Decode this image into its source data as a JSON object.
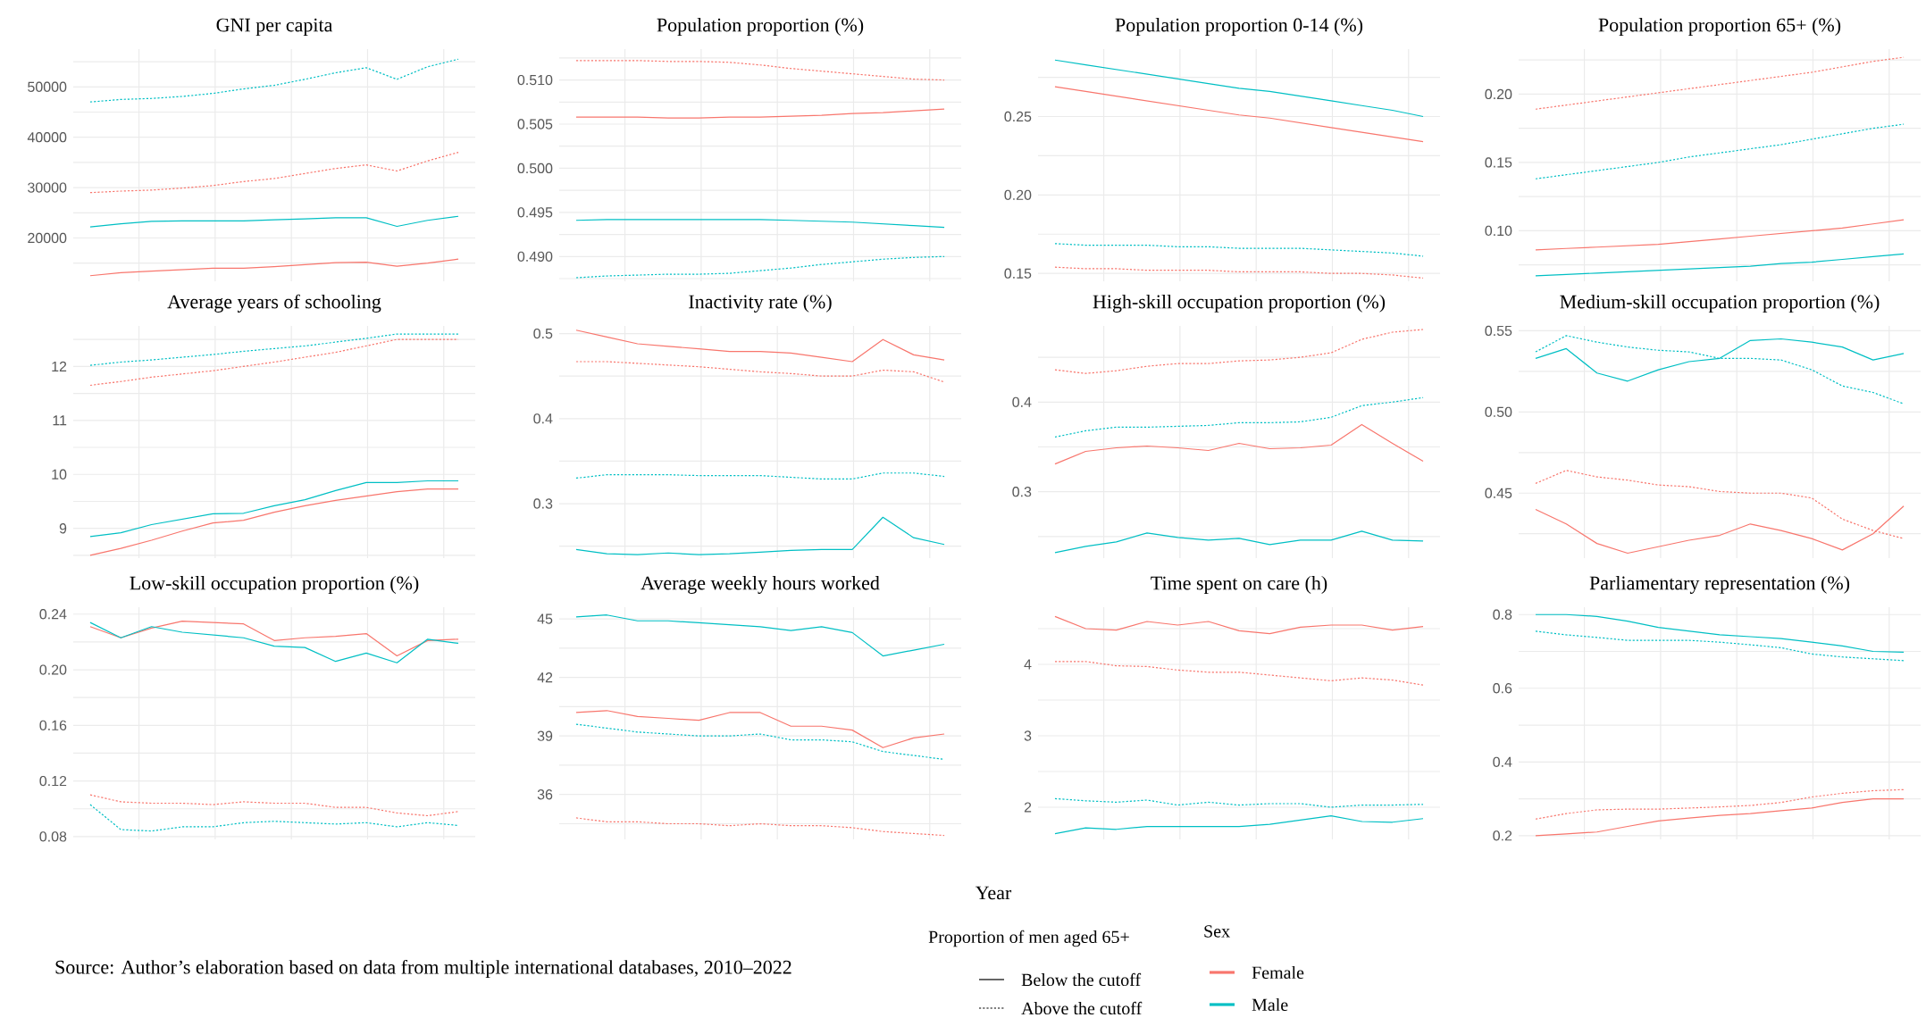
{
  "chart_data": [
    {
      "type": "line",
      "title": "GNI per capita",
      "categories": [
        null,
        null,
        null,
        null,
        null,
        null,
        null,
        null,
        null,
        null,
        null,
        null,
        null
      ],
      "ylim": [
        11400,
        57500
      ],
      "yticks": [
        {
          "value": 15000,
          "label": null
        },
        20000,
        {
          "value": 25000,
          "label": null
        },
        30000,
        {
          "value": 35000,
          "label": null
        },
        40000,
        {
          "value": 45000,
          "label": null
        },
        50000,
        {
          "value": 55000,
          "label": null
        }
      ],
      "grid": true,
      "tick_labels": "y",
      "series": [
        {
          "color": "#f8766d",
          "line_style": "solid",
          "values": [
            12500,
            13100,
            13400,
            13700,
            14000,
            14000,
            14300,
            14700,
            15100,
            15200,
            14400,
            15000,
            15800
          ]
        },
        {
          "color": "#f8766d",
          "line_style": "dotted",
          "values": [
            29000,
            29300,
            29500,
            29900,
            30400,
            31200,
            31800,
            32800,
            33800,
            34500,
            33300,
            35300,
            37000
          ]
        },
        {
          "color": "#00bfc4",
          "line_style": "solid",
          "values": [
            22200,
            22800,
            23300,
            23400,
            23400,
            23400,
            23600,
            23800,
            24000,
            24000,
            22300,
            23500,
            24300
          ]
        },
        {
          "color": "#00bfc4",
          "line_style": "dotted",
          "values": [
            47000,
            47500,
            47700,
            48100,
            48700,
            49600,
            50300,
            51500,
            52800,
            53800,
            51500,
            54000,
            55500
          ]
        }
      ]
    },
    {
      "type": "line",
      "title": "Population proportion (%)",
      "categories": [
        null,
        null,
        null,
        null,
        null,
        null,
        null,
        null,
        null,
        null,
        null,
        null,
        null
      ],
      "ylim": [
        0.4872,
        0.5135
      ],
      "yticks": [
        {
          "value": 0.4875,
          "label": null
        },
        {
          "value": 0.49,
          "label": "0.490"
        },
        {
          "value": 0.4925,
          "label": null
        },
        0.495,
        {
          "value": 0.4975,
          "label": null
        },
        {
          "value": 0.5,
          "label": "0.500"
        },
        {
          "value": 0.5025,
          "label": null
        },
        0.505,
        {
          "value": 0.5075,
          "label": null
        },
        {
          "value": 0.51,
          "label": "0.510"
        },
        {
          "value": 0.5125,
          "label": null
        }
      ],
      "grid": true,
      "tick_labels": "y",
      "series": [
        {
          "color": "#f8766d",
          "line_style": "solid",
          "values": [
            0.5058,
            0.5058,
            0.5058,
            0.5057,
            0.5057,
            0.5058,
            0.5058,
            0.5059,
            0.506,
            0.5062,
            0.5063,
            0.5065,
            0.5067
          ]
        },
        {
          "color": "#f8766d",
          "line_style": "dotted",
          "values": [
            0.5122,
            0.5122,
            0.5122,
            0.5121,
            0.5121,
            0.512,
            0.5117,
            0.5113,
            0.511,
            0.5107,
            0.5104,
            0.5101,
            0.51
          ]
        },
        {
          "color": "#00bfc4",
          "line_style": "solid",
          "values": [
            0.4941,
            0.4942,
            0.4942,
            0.4942,
            0.4942,
            0.4942,
            0.4942,
            0.4941,
            0.494,
            0.4939,
            0.4937,
            0.4935,
            0.4933
          ]
        },
        {
          "color": "#00bfc4",
          "line_style": "dotted",
          "values": [
            0.4876,
            0.4878,
            0.4879,
            0.488,
            0.488,
            0.4881,
            0.4884,
            0.4887,
            0.4891,
            0.4894,
            0.4897,
            0.4899,
            0.49
          ]
        }
      ]
    },
    {
      "type": "line",
      "title": "Population proportion 0-14 (%)",
      "categories": [
        null,
        null,
        null,
        null,
        null,
        null,
        null,
        null,
        null,
        null,
        null,
        null,
        null
      ],
      "ylim": [
        0.145,
        0.293
      ],
      "yticks": [
        0.15,
        {
          "value": 0.175,
          "label": null
        },
        {
          "value": 0.2,
          "label": "0.20"
        },
        {
          "value": 0.225,
          "label": null
        },
        0.25,
        {
          "value": 0.275,
          "label": null
        }
      ],
      "grid": true,
      "tick_labels": "y",
      "series": [
        {
          "color": "#f8766d",
          "line_style": "solid",
          "values": [
            0.269,
            0.266,
            0.263,
            0.26,
            0.257,
            0.254,
            0.251,
            0.249,
            0.246,
            0.243,
            0.24,
            0.237,
            0.234
          ]
        },
        {
          "color": "#f8766d",
          "line_style": "dotted",
          "values": [
            0.154,
            0.153,
            0.153,
            0.152,
            0.152,
            0.152,
            0.151,
            0.151,
            0.151,
            0.15,
            0.15,
            0.149,
            0.147
          ]
        },
        {
          "color": "#00bfc4",
          "line_style": "solid",
          "values": [
            0.286,
            0.283,
            0.28,
            0.277,
            0.274,
            0.271,
            0.268,
            0.266,
            0.263,
            0.26,
            0.257,
            0.254,
            0.25
          ]
        },
        {
          "color": "#00bfc4",
          "line_style": "dotted",
          "values": [
            0.169,
            0.168,
            0.168,
            0.168,
            0.167,
            0.167,
            0.166,
            0.166,
            0.166,
            0.165,
            0.164,
            0.163,
            0.161
          ]
        }
      ]
    },
    {
      "type": "line",
      "title": "Population proportion 65+ (%)",
      "categories": [
        null,
        null,
        null,
        null,
        null,
        null,
        null,
        null,
        null,
        null,
        null,
        null,
        null
      ],
      "ylim": [
        0.063,
        0.233
      ],
      "yticks": [
        {
          "value": 0.075,
          "label": null
        },
        {
          "value": 0.1,
          "label": "0.10"
        },
        {
          "value": 0.125,
          "label": null
        },
        0.15,
        {
          "value": 0.175,
          "label": null
        },
        {
          "value": 0.2,
          "label": "0.20"
        },
        {
          "value": 0.225,
          "label": null
        }
      ],
      "grid": true,
      "tick_labels": "y",
      "series": [
        {
          "color": "#f8766d",
          "line_style": "solid",
          "values": [
            0.086,
            0.087,
            0.088,
            0.089,
            0.09,
            0.092,
            0.094,
            0.096,
            0.098,
            0.1,
            0.102,
            0.105,
            0.108
          ]
        },
        {
          "color": "#f8766d",
          "line_style": "dotted",
          "values": [
            0.189,
            0.192,
            0.195,
            0.198,
            0.201,
            0.204,
            0.207,
            0.21,
            0.213,
            0.216,
            0.22,
            0.224,
            0.227
          ]
        },
        {
          "color": "#00bfc4",
          "line_style": "solid",
          "values": [
            0.067,
            0.068,
            0.069,
            0.07,
            0.071,
            0.072,
            0.073,
            0.074,
            0.076,
            0.077,
            0.079,
            0.081,
            0.083
          ]
        },
        {
          "color": "#00bfc4",
          "line_style": "dotted",
          "values": [
            0.138,
            0.141,
            0.144,
            0.147,
            0.15,
            0.154,
            0.157,
            0.16,
            0.163,
            0.167,
            0.171,
            0.175,
            0.178
          ]
        }
      ]
    },
    {
      "type": "line",
      "title": "Average years of schooling",
      "categories": [
        null,
        null,
        null,
        null,
        null,
        null,
        null,
        null,
        null,
        null,
        null,
        null,
        null
      ],
      "ylim": [
        8.45,
        12.75
      ],
      "yticks": [
        {
          "value": 8.5,
          "label": null
        },
        9,
        {
          "value": 9.5,
          "label": null
        },
        10,
        {
          "value": 10.5,
          "label": null
        },
        11,
        {
          "value": 11.5,
          "label": null
        },
        12,
        {
          "value": 12.5,
          "label": null
        }
      ],
      "grid": true,
      "tick_labels": "y",
      "series": [
        {
          "color": "#f8766d",
          "line_style": "solid",
          "values": [
            8.5,
            8.63,
            8.78,
            8.95,
            9.1,
            9.15,
            9.3,
            9.42,
            9.52,
            9.6,
            9.68,
            9.73,
            9.73
          ]
        },
        {
          "color": "#f8766d",
          "line_style": "dotted",
          "values": [
            11.65,
            11.72,
            11.8,
            11.86,
            11.92,
            12.0,
            12.08,
            12.17,
            12.26,
            12.38,
            12.5,
            12.5,
            12.5
          ]
        },
        {
          "color": "#00bfc4",
          "line_style": "solid",
          "values": [
            8.85,
            8.92,
            9.07,
            9.17,
            9.27,
            9.28,
            9.42,
            9.53,
            9.7,
            9.85,
            9.85,
            9.88,
            9.88
          ]
        },
        {
          "color": "#00bfc4",
          "line_style": "dotted",
          "values": [
            12.02,
            12.08,
            12.12,
            12.17,
            12.22,
            12.28,
            12.33,
            12.38,
            12.45,
            12.52,
            12.6,
            12.6,
            12.6
          ]
        }
      ]
    },
    {
      "type": "line",
      "title": "Inactivity rate (%)",
      "categories": [
        null,
        null,
        null,
        null,
        null,
        null,
        null,
        null,
        null,
        null,
        null,
        null,
        null
      ],
      "ylim": [
        0.236,
        0.509
      ],
      "yticks": [
        {
          "value": 0.25,
          "label": null
        },
        0.3,
        {
          "value": 0.35,
          "label": null
        },
        0.4,
        {
          "value": 0.45,
          "label": null
        },
        0.5
      ],
      "grid": true,
      "tick_labels": "y",
      "series": [
        {
          "color": "#f8766d",
          "line_style": "solid",
          "values": [
            0.504,
            0.496,
            0.488,
            0.485,
            0.482,
            0.479,
            0.479,
            0.477,
            0.472,
            0.467,
            0.493,
            0.475,
            0.469
          ]
        },
        {
          "color": "#f8766d",
          "line_style": "dotted",
          "values": [
            0.467,
            0.467,
            0.465,
            0.463,
            0.461,
            0.458,
            0.455,
            0.453,
            0.45,
            0.45,
            0.457,
            0.455,
            0.443
          ]
        },
        {
          "color": "#00bfc4",
          "line_style": "solid",
          "values": [
            0.246,
            0.241,
            0.24,
            0.242,
            0.24,
            0.241,
            0.243,
            0.245,
            0.246,
            0.246,
            0.284,
            0.26,
            0.252
          ]
        },
        {
          "color": "#00bfc4",
          "line_style": "dotted",
          "values": [
            0.33,
            0.334,
            0.334,
            0.334,
            0.333,
            0.333,
            0.333,
            0.331,
            0.329,
            0.329,
            0.336,
            0.336,
            0.332
          ]
        }
      ]
    },
    {
      "type": "line",
      "title": "High-skill occupation proportion (%)",
      "categories": [
        null,
        null,
        null,
        null,
        null,
        null,
        null,
        null,
        null,
        null,
        null,
        null,
        null
      ],
      "ylim": [
        0.226,
        0.485
      ],
      "yticks": [
        {
          "value": 0.25,
          "label": null
        },
        0.3,
        {
          "value": 0.35,
          "label": null
        },
        0.4,
        {
          "value": 0.45,
          "label": null
        }
      ],
      "grid": true,
      "tick_labels": "y",
      "series": [
        {
          "color": "#f8766d",
          "line_style": "solid",
          "values": [
            0.331,
            0.345,
            0.349,
            0.351,
            0.349,
            0.346,
            0.354,
            0.348,
            0.349,
            0.352,
            0.375,
            0.354,
            0.334
          ]
        },
        {
          "color": "#f8766d",
          "line_style": "dotted",
          "values": [
            0.436,
            0.432,
            0.435,
            0.44,
            0.443,
            0.443,
            0.446,
            0.447,
            0.45,
            0.455,
            0.47,
            0.478,
            0.481
          ]
        },
        {
          "color": "#00bfc4",
          "line_style": "solid",
          "values": [
            0.232,
            0.239,
            0.244,
            0.254,
            0.249,
            0.246,
            0.248,
            0.241,
            0.246,
            0.246,
            0.256,
            0.246,
            0.245
          ]
        },
        {
          "color": "#00bfc4",
          "line_style": "dotted",
          "values": [
            0.361,
            0.368,
            0.372,
            0.372,
            0.373,
            0.374,
            0.377,
            0.377,
            0.378,
            0.383,
            0.396,
            0.4,
            0.405
          ]
        }
      ]
    },
    {
      "type": "line",
      "title": "Medium-skill occupation proportion (%)",
      "categories": [
        null,
        null,
        null,
        null,
        null,
        null,
        null,
        null,
        null,
        null,
        null,
        null,
        null
      ],
      "ylim": [
        0.41,
        0.553
      ],
      "yticks": [
        {
          "value": 0.425,
          "label": null
        },
        0.45,
        {
          "value": 0.475,
          "label": null
        },
        {
          "value": 0.5,
          "label": "0.50"
        },
        {
          "value": 0.525,
          "label": null
        },
        0.55
      ],
      "grid": true,
      "tick_labels": "y",
      "series": [
        {
          "color": "#f8766d",
          "line_style": "solid",
          "values": [
            0.44,
            0.431,
            0.419,
            0.413,
            0.417,
            0.421,
            0.424,
            0.431,
            0.427,
            0.422,
            0.415,
            0.425,
            0.442
          ]
        },
        {
          "color": "#f8766d",
          "line_style": "dotted",
          "values": [
            0.456,
            0.464,
            0.46,
            0.458,
            0.455,
            0.454,
            0.451,
            0.45,
            0.45,
            0.447,
            0.434,
            0.427,
            0.422
          ]
        },
        {
          "color": "#00bfc4",
          "line_style": "solid",
          "values": [
            0.533,
            0.539,
            0.524,
            0.519,
            0.526,
            0.531,
            0.533,
            0.544,
            0.545,
            0.543,
            0.54,
            0.532,
            0.536
          ]
        },
        {
          "color": "#00bfc4",
          "line_style": "dotted",
          "values": [
            0.537,
            0.547,
            0.543,
            0.54,
            0.538,
            0.537,
            0.533,
            0.533,
            0.532,
            0.526,
            0.516,
            0.512,
            0.505
          ]
        }
      ]
    },
    {
      "type": "line",
      "title": "Low-skill occupation proportion (%)",
      "categories": [
        null,
        null,
        null,
        null,
        null,
        null,
        null,
        null,
        null,
        null,
        null,
        null,
        null
      ],
      "ylim": [
        0.078,
        0.245
      ],
      "yticks": [
        0.08,
        {
          "value": 0.1,
          "label": null
        },
        0.12,
        {
          "value": 0.14,
          "label": null
        },
        0.16,
        {
          "value": 0.18,
          "label": null
        },
        {
          "value": 0.2,
          "label": "0.20"
        },
        {
          "value": 0.22,
          "label": null
        },
        0.24
      ],
      "grid": true,
      "tick_labels": "y",
      "series": [
        {
          "color": "#f8766d",
          "line_style": "solid",
          "values": [
            0.231,
            0.223,
            0.23,
            0.235,
            0.234,
            0.233,
            0.221,
            0.223,
            0.224,
            0.226,
            0.21,
            0.221,
            0.222
          ]
        },
        {
          "color": "#f8766d",
          "line_style": "dotted",
          "values": [
            0.11,
            0.105,
            0.104,
            0.104,
            0.103,
            0.105,
            0.104,
            0.104,
            0.101,
            0.101,
            0.097,
            0.095,
            0.098
          ]
        },
        {
          "color": "#00bfc4",
          "line_style": "solid",
          "values": [
            0.234,
            0.223,
            0.231,
            0.227,
            0.225,
            0.223,
            0.217,
            0.216,
            0.206,
            0.212,
            0.205,
            0.222,
            0.219
          ]
        },
        {
          "color": "#00bfc4",
          "line_style": "dotted",
          "values": [
            0.103,
            0.085,
            0.084,
            0.087,
            0.087,
            0.09,
            0.091,
            0.09,
            0.089,
            0.09,
            0.087,
            0.09,
            0.088
          ]
        }
      ]
    },
    {
      "type": "line",
      "title": "Average weekly hours worked",
      "categories": [
        null,
        null,
        null,
        null,
        null,
        null,
        null,
        null,
        null,
        null,
        null,
        null,
        null
      ],
      "ylim": [
        33.7,
        45.6
      ],
      "yticks": [
        {
          "value": 34.5,
          "label": null
        },
        36,
        {
          "value": 37.5,
          "label": null
        },
        39,
        {
          "value": 40.5,
          "label": null
        },
        42,
        {
          "value": 43.5,
          "label": null
        },
        45
      ],
      "grid": true,
      "tick_labels": "y",
      "series": [
        {
          "color": "#f8766d",
          "line_style": "solid",
          "values": [
            40.2,
            40.3,
            40.0,
            39.9,
            39.8,
            40.2,
            40.2,
            39.5,
            39.5,
            39.3,
            38.4,
            38.9,
            39.1
          ]
        },
        {
          "color": "#f8766d",
          "line_style": "dotted",
          "values": [
            34.8,
            34.6,
            34.6,
            34.5,
            34.5,
            34.4,
            34.5,
            34.4,
            34.4,
            34.3,
            34.1,
            34.0,
            33.9
          ]
        },
        {
          "color": "#00bfc4",
          "line_style": "solid",
          "values": [
            45.1,
            45.2,
            44.9,
            44.9,
            44.8,
            44.7,
            44.6,
            44.4,
            44.6,
            44.3,
            43.1,
            43.4,
            43.7
          ]
        },
        {
          "color": "#00bfc4",
          "line_style": "dotted",
          "values": [
            39.6,
            39.4,
            39.2,
            39.1,
            39.0,
            39.0,
            39.1,
            38.8,
            38.8,
            38.7,
            38.2,
            38.0,
            37.8
          ]
        }
      ]
    },
    {
      "type": "line",
      "title": "Time spent on care (h)",
      "categories": [
        null,
        null,
        null,
        null,
        null,
        null,
        null,
        null,
        null,
        null,
        null,
        null,
        null
      ],
      "ylim": [
        1.55,
        4.8
      ],
      "yticks": [
        2,
        {
          "value": 2.5,
          "label": null
        },
        3,
        {
          "value": 3.5,
          "label": null
        },
        4,
        {
          "value": 4.5,
          "label": null
        }
      ],
      "grid": true,
      "tick_labels": "y",
      "series": [
        {
          "color": "#f8766d",
          "line_style": "solid",
          "values": [
            4.67,
            4.5,
            4.48,
            4.6,
            4.55,
            4.6,
            4.47,
            4.43,
            4.52,
            4.55,
            4.55,
            4.48,
            4.53
          ]
        },
        {
          "color": "#f8766d",
          "line_style": "dotted",
          "values": [
            4.04,
            4.04,
            3.98,
            3.97,
            3.92,
            3.89,
            3.89,
            3.85,
            3.81,
            3.77,
            3.81,
            3.78,
            3.71
          ]
        },
        {
          "color": "#00bfc4",
          "line_style": "solid",
          "values": [
            1.63,
            1.71,
            1.69,
            1.73,
            1.73,
            1.73,
            1.73,
            1.76,
            1.82,
            1.88,
            1.8,
            1.79,
            1.84
          ]
        },
        {
          "color": "#00bfc4",
          "line_style": "dotted",
          "values": [
            2.12,
            2.09,
            2.07,
            2.1,
            2.03,
            2.07,
            2.03,
            2.05,
            2.05,
            2.0,
            2.03,
            2.03,
            2.04
          ]
        }
      ]
    },
    {
      "type": "line",
      "title": "Parliamentary representation (%)",
      "categories": [
        null,
        null,
        null,
        null,
        null,
        null,
        null,
        null,
        null,
        null,
        null,
        null,
        null
      ],
      "ylim": [
        0.19,
        0.82
      ],
      "yticks": [
        0.2,
        {
          "value": 0.3,
          "label": null
        },
        0.4,
        {
          "value": 0.5,
          "label": null
        },
        0.6,
        {
          "value": 0.7,
          "label": null
        },
        0.8
      ],
      "grid": true,
      "tick_labels": "y",
      "series": [
        {
          "color": "#f8766d",
          "line_style": "solid",
          "values": [
            0.2,
            0.205,
            0.21,
            0.225,
            0.24,
            0.248,
            0.255,
            0.26,
            0.268,
            0.275,
            0.29,
            0.3,
            0.3
          ]
        },
        {
          "color": "#f8766d",
          "line_style": "dotted",
          "values": [
            0.245,
            0.26,
            0.27,
            0.272,
            0.272,
            0.275,
            0.278,
            0.282,
            0.29,
            0.305,
            0.315,
            0.322,
            0.325
          ]
        },
        {
          "color": "#00bfc4",
          "line_style": "solid",
          "values": [
            0.8,
            0.8,
            0.795,
            0.782,
            0.765,
            0.755,
            0.745,
            0.74,
            0.735,
            0.725,
            0.715,
            0.7,
            0.698
          ]
        },
        {
          "color": "#00bfc4",
          "line_style": "dotted",
          "values": [
            0.755,
            0.745,
            0.738,
            0.73,
            0.73,
            0.73,
            0.725,
            0.718,
            0.71,
            0.693,
            0.685,
            0.68,
            0.675
          ]
        }
      ]
    },
    {
      "type": "other",
      "xlabel": "Year",
      "legend": "bottom right",
      "legend_title": "Proportion of men aged 65+",
      "annotations": [
        "Source: Author’s elaboration based on data from multiple international databases, 2010–2022",
        "Sex"
      ],
      "series": [
        {
          "name": "Below the cutoff",
          "color": "#000000",
          "line_style": "solid"
        },
        {
          "name": "Above the cutoff",
          "color": "#000000",
          "line_style": "dotted"
        },
        {
          "name": "Female",
          "color": "#f8766d"
        },
        {
          "name": "Male",
          "color": "#00bfc4"
        }
      ]
    }
  ]
}
